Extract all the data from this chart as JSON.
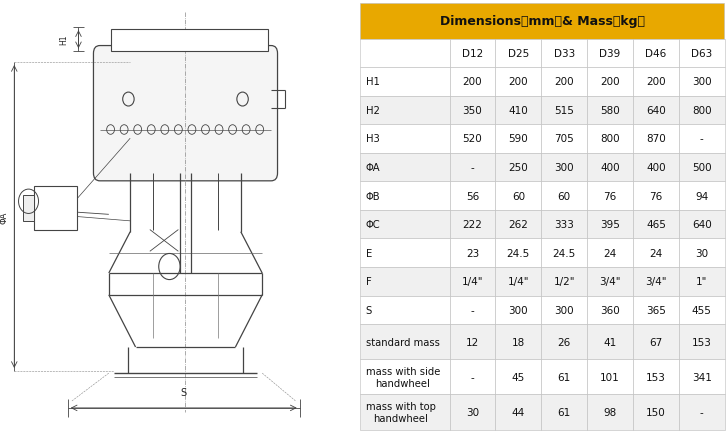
{
  "header_bg": "#E8A800",
  "border_color": "#BBBBBB",
  "col_headers": [
    "",
    "D12",
    "D25",
    "D33",
    "D39",
    "D46",
    "D63"
  ],
  "rows": [
    [
      "H1",
      "200",
      "200",
      "200",
      "200",
      "200",
      "300"
    ],
    [
      "H2",
      "350",
      "410",
      "515",
      "580",
      "640",
      "800"
    ],
    [
      "H3",
      "520",
      "590",
      "705",
      "800",
      "870",
      "-"
    ],
    [
      "ΦA",
      "-",
      "250",
      "300",
      "400",
      "400",
      "500"
    ],
    [
      "ΦB",
      "56",
      "60",
      "60",
      "76",
      "76",
      "94"
    ],
    [
      "ΦC",
      "222",
      "262",
      "333",
      "395",
      "465",
      "640"
    ],
    [
      "E",
      "23",
      "24.5",
      "24.5",
      "24",
      "24",
      "30"
    ],
    [
      "F",
      "1/4\"",
      "1/4\"",
      "1/2\"",
      "3/4\"",
      "3/4\"",
      "1\""
    ],
    [
      "S",
      "-",
      "300",
      "300",
      "360",
      "365",
      "455"
    ],
    [
      "standard mass",
      "12",
      "18",
      "26",
      "41",
      "67",
      "153"
    ],
    [
      "mass with side\nhandwheel",
      "-",
      "45",
      "61",
      "101",
      "153",
      "341"
    ],
    [
      "mass with top\nhandwheel",
      "30",
      "44",
      "61",
      "98",
      "150",
      "-"
    ]
  ],
  "fig_width": 7.28,
  "fig_height": 4.35,
  "dpi": 100
}
